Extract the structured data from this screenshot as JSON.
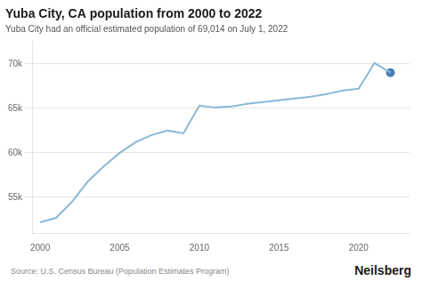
{
  "chart_data": {
    "type": "line",
    "title": "Yuba City, CA population from 2000 to 2022",
    "subtitle": "Yuba City had an official estimated population of 69,014 on July 1, 2022",
    "annotations": [
      "Source: U.S. Census Bureau (Population Estimates Program)",
      "Neilsberg"
    ],
    "x": [
      2000,
      2001,
      2002,
      2003,
      2004,
      2005,
      2006,
      2007,
      2008,
      2009,
      2010,
      2011,
      2012,
      2013,
      2014,
      2015,
      2016,
      2017,
      2018,
      2019,
      2020,
      2021,
      2022
    ],
    "series": [
      {
        "color": "#8ab8d8",
        "marker": "none",
        "line_style": "solid",
        "values": [
          52200,
          52700,
          54500,
          56800,
          58500,
          60000,
          61200,
          62000,
          62500,
          62200,
          65300,
          65100,
          65200,
          65500,
          65700,
          65900,
          66100,
          66300,
          66600,
          67000,
          67200,
          70100,
          69014
        ]
      },
      {
        "type": "scatter",
        "color": "#4a7fb5",
        "marker": "circle",
        "line_style": "none",
        "values": [
          null,
          null,
          null,
          null,
          null,
          null,
          null,
          null,
          null,
          null,
          null,
          null,
          null,
          null,
          null,
          null,
          null,
          null,
          null,
          null,
          null,
          null,
          69014
        ]
      }
    ],
    "xlim": [
      1999.5,
      2023.2
    ],
    "xticks": [
      2000,
      2005,
      2010,
      2015,
      2020
    ],
    "ylim": [
      51000,
      72500
    ],
    "yticks": [
      {
        "value": 55000,
        "label": "55k"
      },
      {
        "value": 60000,
        "label": "60k"
      },
      {
        "value": 65000,
        "label": "65k"
      },
      {
        "value": 70000,
        "label": "70k"
      }
    ],
    "grid": "y"
  }
}
